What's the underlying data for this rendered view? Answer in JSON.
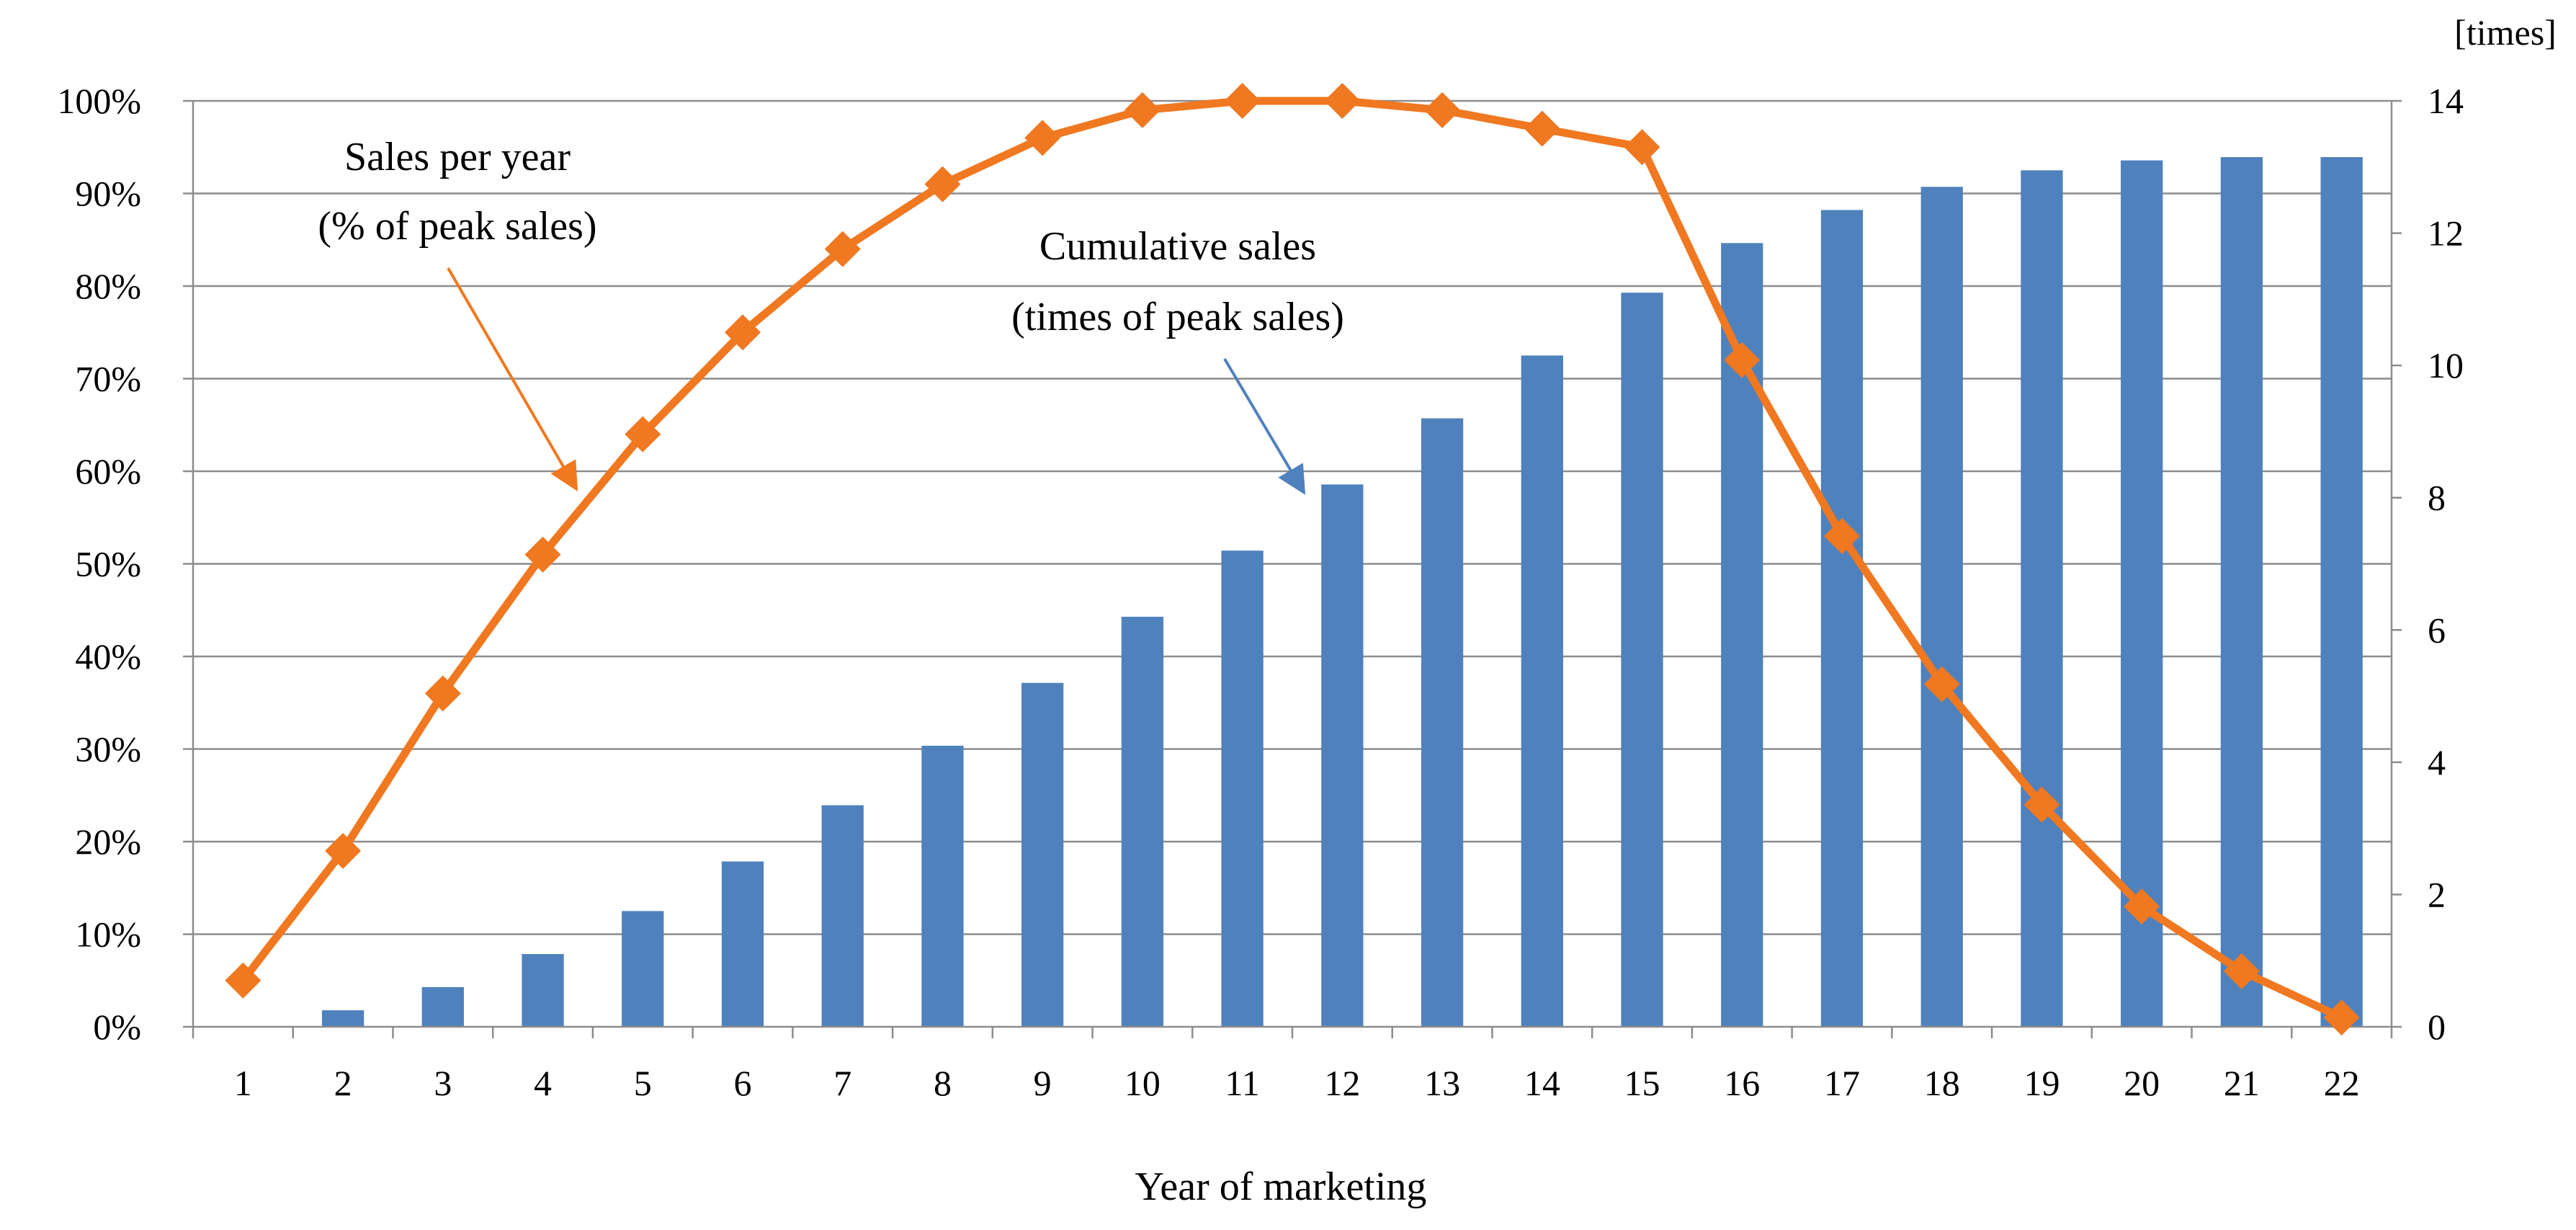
{
  "chart_data": {
    "type": "bar+line",
    "x": [
      1,
      2,
      3,
      4,
      5,
      6,
      7,
      8,
      9,
      10,
      11,
      12,
      13,
      14,
      15,
      16,
      17,
      18,
      19,
      20,
      21,
      22
    ],
    "xlabel": "Year of marketing",
    "series": [
      {
        "values": [
          0,
          0.25,
          0.6,
          1.1,
          1.75,
          2.5,
          3.35,
          4.25,
          5.2,
          6.2,
          7.2,
          8.2,
          9.2,
          10.15,
          11.1,
          11.85,
          12.35,
          12.7,
          12.95,
          13.1,
          13.15,
          13.15
        ],
        "type": "bar",
        "axis": "right",
        "color": "#4F81BD"
      },
      {
        "values": [
          5,
          19,
          36,
          51,
          64,
          75,
          84,
          91,
          96,
          99,
          100,
          100,
          99,
          97,
          95,
          72,
          53,
          37,
          24,
          13,
          6,
          1
        ],
        "type": "line",
        "axis": "left",
        "marker": "diamond",
        "color": "#F07820"
      }
    ],
    "y_left": {
      "ylim": [
        0,
        100
      ],
      "ticks": [
        0,
        10,
        20,
        30,
        40,
        50,
        60,
        70,
        80,
        90,
        100
      ],
      "tick_suffix": "%"
    },
    "y_right": {
      "ylim": [
        0,
        14
      ],
      "ticks": [
        0,
        2,
        4,
        6,
        8,
        10,
        12,
        14
      ],
      "unit_label": "[times]"
    },
    "grid": true,
    "annotations": [
      {
        "lines": [
          "Sales per year",
          "(% of peak sales)"
        ],
        "arrow_color": "#F07820"
      },
      {
        "lines": [
          "Cumulative sales",
          "(times of peak sales)"
        ],
        "arrow_color": "#4F81BD"
      }
    ]
  }
}
